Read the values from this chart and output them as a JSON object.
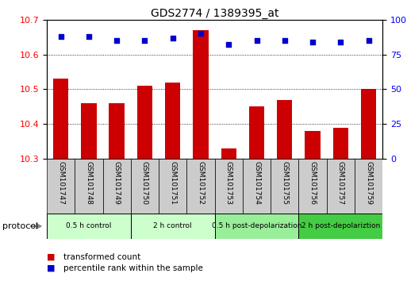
{
  "title": "GDS2774 / 1389395_at",
  "samples": [
    "GSM101747",
    "GSM101748",
    "GSM101749",
    "GSM101750",
    "GSM101751",
    "GSM101752",
    "GSM101753",
    "GSM101754",
    "GSM101755",
    "GSM101756",
    "GSM101757",
    "GSM101759"
  ],
  "bar_values": [
    10.53,
    10.46,
    10.46,
    10.51,
    10.52,
    10.67,
    10.33,
    10.45,
    10.47,
    10.38,
    10.39,
    10.5
  ],
  "dot_values": [
    88,
    88,
    85,
    85,
    87,
    90,
    82,
    85,
    85,
    84,
    84,
    85
  ],
  "bar_color": "#cc0000",
  "dot_color": "#0000cc",
  "ylim_left": [
    10.3,
    10.7
  ],
  "ylim_right": [
    0,
    100
  ],
  "yticks_left": [
    10.3,
    10.4,
    10.5,
    10.6,
    10.7
  ],
  "yticks_right": [
    0,
    25,
    50,
    75,
    100
  ],
  "groups": [
    {
      "label": "0.5 h control",
      "start": 0,
      "end": 3,
      "color": "#ccffcc"
    },
    {
      "label": "2 h control",
      "start": 3,
      "end": 6,
      "color": "#ccffcc"
    },
    {
      "label": "0.5 h post-depolarization",
      "start": 6,
      "end": 9,
      "color": "#99ee99"
    },
    {
      "label": "2 h post-depolariztion",
      "start": 9,
      "end": 12,
      "color": "#44cc44"
    }
  ],
  "protocol_label": "protocol",
  "legend_bar_label": "transformed count",
  "legend_dot_label": "percentile rank within the sample",
  "bg_color": "#ffffff",
  "plot_bg": "#ffffff",
  "tick_label_bg": "#cccccc"
}
